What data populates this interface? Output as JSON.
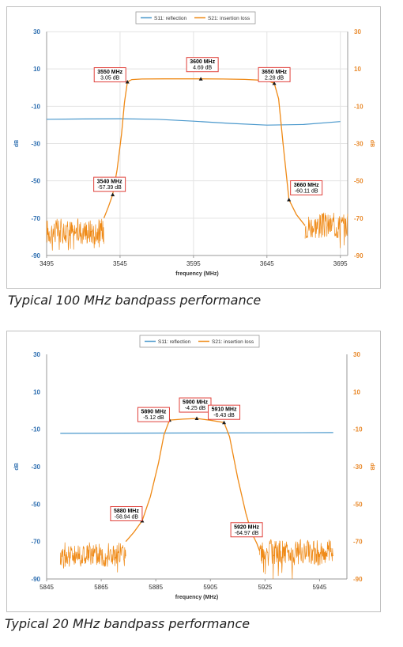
{
  "captions": {
    "first": "Typical 100 MHz bandpass performance",
    "second": "Typical 20 MHz bandpass performance"
  },
  "colors": {
    "s11": "#4a98cc",
    "s21": "#ef8a17",
    "annotation_border": "#e0403a",
    "left_axis": "#2f6fb0",
    "right_axis": "#e8892b"
  },
  "chart_data": [
    {
      "type": "line",
      "xlabel": "frequency (MHz)",
      "ylabel": "dB",
      "y2label": "dB",
      "xlim": [
        3495,
        3700
      ],
      "ylim": [
        -90,
        30
      ],
      "x_ticks": [
        3495,
        3545,
        3595,
        3645,
        3695
      ],
      "y_ticks": [
        30,
        10,
        -10,
        -30,
        -50,
        -70,
        -90
      ],
      "legend_position": "top-center",
      "grid": true,
      "noise": {
        "low_x": [
          3495,
          3534
        ],
        "high_x": [
          3671,
          3700
        ],
        "low_level": -77,
        "high_level": -74,
        "amplitude": 7
      },
      "series": [
        {
          "name": "S11: reflection",
          "color": "#4a98cc",
          "x": [
            3495,
            3520,
            3545,
            3570,
            3595,
            3620,
            3645,
            3670,
            3695
          ],
          "y": [
            -17,
            -16.8,
            -16.7,
            -17,
            -18,
            -19.2,
            -20.1,
            -19.8,
            -18.2
          ]
        },
        {
          "name": "S21: insertion loss",
          "color": "#ef8a17",
          "x": [
            3534,
            3537,
            3540,
            3543,
            3546,
            3548,
            3550,
            3553,
            3560,
            3575,
            3595,
            3600,
            3615,
            3630,
            3645,
            3650,
            3653,
            3656,
            3660,
            3665,
            3668,
            3671
          ],
          "y": [
            -70,
            -64,
            -57.39,
            -44,
            -25,
            -8,
            3.05,
            4.3,
            4.6,
            4.7,
            4.7,
            4.69,
            4.6,
            4.4,
            3.8,
            2.28,
            -6,
            -30,
            -60.11,
            -68,
            -71,
            -74
          ]
        }
      ],
      "annotations": [
        {
          "freq": "3550 MHz",
          "value": "3.05 dB",
          "x": 3550,
          "y": 3.05
        },
        {
          "freq": "3600 MHz",
          "value": "4.69 dB",
          "x": 3600,
          "y": 4.69
        },
        {
          "freq": "3650 MHz",
          "value": "2.28 dB",
          "x": 3650,
          "y": 2.28
        },
        {
          "freq": "3540 MHz",
          "value": "-57.39 dB",
          "x": 3540,
          "y": -57.39
        },
        {
          "freq": "3660 MHz",
          "value": "-60.11 dB",
          "x": 3660,
          "y": -60.11
        }
      ]
    },
    {
      "type": "line",
      "xlabel": "frequency (MHz)",
      "ylabel": "dB",
      "y2label": "dB",
      "xlim": [
        5845,
        5955
      ],
      "ylim": [
        -90,
        30
      ],
      "x_ticks": [
        5845,
        5865,
        5885,
        5905,
        5925,
        5945
      ],
      "y_ticks": [
        30,
        10,
        -10,
        -30,
        -50,
        -70,
        -90
      ],
      "legend_position": "top-center",
      "grid": false,
      "noise": {
        "low_x": [
          5850,
          5874
        ],
        "high_x": [
          5923,
          5950
        ],
        "low_level": -77,
        "high_level": -76,
        "amplitude": 7
      },
      "series": [
        {
          "name": "S11: reflection",
          "color": "#4a98cc",
          "x": [
            5850,
            5875,
            5900,
            5925,
            5950
          ],
          "y": [
            -12.2,
            -12.1,
            -12,
            -11.9,
            -11.8
          ]
        },
        {
          "name": "S21: insertion loss",
          "color": "#ef8a17",
          "x": [
            5874,
            5877,
            5880,
            5883,
            5886,
            5888,
            5890,
            5895,
            5900,
            5905,
            5910,
            5912,
            5915,
            5918,
            5920,
            5922,
            5923
          ],
          "y": [
            -70,
            -65,
            -58.94,
            -46,
            -28,
            -13,
            -5.12,
            -4.6,
            -4.25,
            -5.2,
            -6.43,
            -14,
            -36,
            -55,
            -64.97,
            -71,
            -75
          ]
        }
      ],
      "annotations": [
        {
          "freq": "5890 MHz",
          "value": "-5.12 dB",
          "x": 5890,
          "y": -5.12
        },
        {
          "freq": "5900 MHz",
          "value": "-4.25 dB",
          "x": 5900,
          "y": -4.25
        },
        {
          "freq": "5910 MHz",
          "value": "-6.43 dB",
          "x": 5910,
          "y": -6.43
        },
        {
          "freq": "5880 MHz",
          "value": "-58.94 dB",
          "x": 5880,
          "y": -58.94
        },
        {
          "freq": "5920 MHz",
          "value": "-64.97 dB",
          "x": 5920,
          "y": -64.97
        }
      ]
    }
  ]
}
